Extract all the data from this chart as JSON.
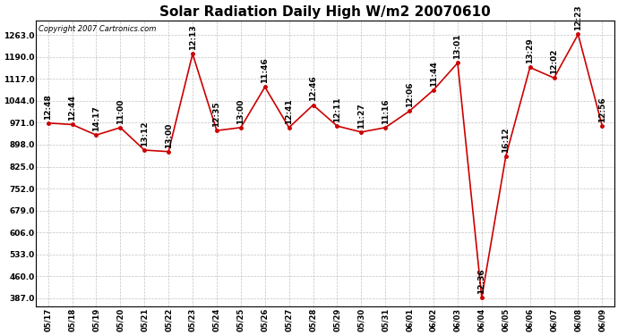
{
  "title": "Solar Radiation Daily High W/m2 20070610",
  "copyright": "Copyright 2007 Cartronics.com",
  "dates": [
    "05/17",
    "05/18",
    "05/19",
    "05/20",
    "05/21",
    "05/22",
    "05/23",
    "05/24",
    "05/25",
    "05/26",
    "05/27",
    "05/28",
    "05/29",
    "05/30",
    "05/31",
    "06/01",
    "06/02",
    "06/03",
    "06/04",
    "06/05",
    "06/06",
    "06/07",
    "06/08",
    "06/09"
  ],
  "values": [
    970,
    965,
    930,
    955,
    880,
    875,
    1200,
    945,
    955,
    1090,
    955,
    1030,
    960,
    940,
    955,
    1010,
    1080,
    1170,
    390,
    860,
    1155,
    1120,
    1265,
    960
  ],
  "time_labels": [
    "12:48",
    "12:44",
    "14:17",
    "11:00",
    "13:12",
    "13:00",
    "12:13",
    "12:35",
    "13:00",
    "11:46",
    "12:41",
    "12:46",
    "12:11",
    "11:27",
    "11:16",
    "12:06",
    "11:44",
    "13:01",
    "12:36",
    "16:12",
    "13:29",
    "12:02",
    "12:23",
    "12:56"
  ],
  "line_color": "#cc0000",
  "marker_color": "#cc0000",
  "background_color": "#ffffff",
  "grid_color": "#bbbbbb",
  "title_fontsize": 11,
  "label_fontsize": 6.5,
  "copyright_fontsize": 6,
  "yticks": [
    387.0,
    460.0,
    533.0,
    606.0,
    679.0,
    752.0,
    825.0,
    898.0,
    971.0,
    1044.0,
    1117.0,
    1190.0,
    1263.0
  ],
  "ylim": [
    360,
    1310
  ]
}
